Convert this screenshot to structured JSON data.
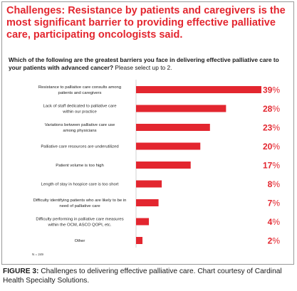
{
  "headline": "Challenges: Resistance by patients and caregivers is the most significant barrier to providing effective palliative care, participating oncologists said.",
  "question": {
    "bold": "Which of the following are the greatest barriers you face in delivering effective palliative care to your patients with advanced cancer?",
    "normal": "Please select up to 2."
  },
  "chart_data": {
    "type": "bar",
    "orientation": "horizontal",
    "categories": [
      [
        "Resistance to palliative care consults among",
        "patients and caregivers"
      ],
      [
        "Lack of staff dedicated to palliative care",
        "within our practice"
      ],
      [
        "Variations between palliative care use",
        "among physicians"
      ],
      [
        "Palliative care resources are underutilized"
      ],
      [
        "Patient volume is too high"
      ],
      [
        "Length of stay in hospice care is too short"
      ],
      [
        "Difficulty identifying patients who are likely to be in",
        "need of palliative care"
      ],
      [
        "Difficulty performing in palliative care measures",
        "within the OCM, ASCO QOPI, etc."
      ],
      [
        "Other"
      ]
    ],
    "values": [
      39,
      28,
      23,
      20,
      17,
      8,
      7,
      4,
      2
    ],
    "value_labels": [
      "39%",
      "28%",
      "23%",
      "20%",
      "17%",
      "8%",
      "7%",
      "4%",
      "2%"
    ],
    "unit": "%",
    "color": "#e3262f",
    "n_note": "N = 249",
    "xlim": [
      0,
      39
    ]
  },
  "caption": {
    "label": "FIGURE 3:",
    "text": " Challenges to delivering effective palliative care. Chart courtesy of Cardinal Health Specialty Solutions."
  }
}
